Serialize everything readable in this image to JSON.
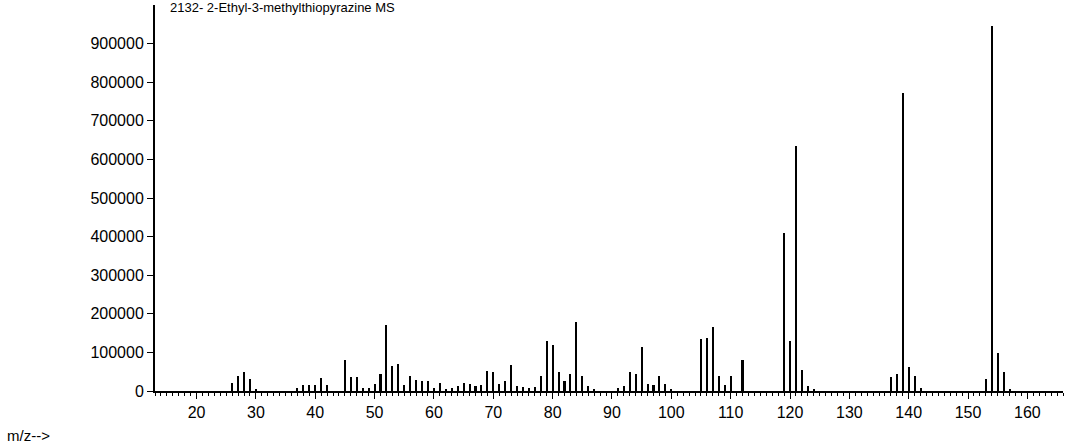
{
  "chart_data": {
    "type": "bar",
    "title": "2132- 2-Ethyl-3-methylthiopyrazine MS",
    "x_label": "m/z-->",
    "x": [
      26,
      27,
      28,
      29,
      30,
      37,
      38,
      39,
      40,
      41,
      42,
      45,
      46,
      47,
      48,
      49,
      50,
      51,
      52,
      53,
      54,
      55,
      56,
      57,
      58,
      59,
      60,
      61,
      62,
      63,
      64,
      65,
      66,
      67,
      68,
      69,
      70,
      71,
      72,
      73,
      74,
      75,
      76,
      77,
      78,
      79,
      80,
      81,
      82,
      83,
      84,
      85,
      86,
      87,
      91,
      92,
      93,
      94,
      95,
      96,
      97,
      98,
      99,
      100,
      105,
      106,
      107,
      108,
      109,
      110,
      112,
      119,
      120,
      121,
      122,
      123,
      124,
      137,
      138,
      139,
      140,
      141,
      142,
      153,
      154,
      155,
      156,
      157
    ],
    "values": [
      20000,
      40000,
      48000,
      30000,
      5000,
      8000,
      15000,
      15000,
      15000,
      33000,
      15000,
      80000,
      35000,
      35000,
      8000,
      8000,
      18000,
      45000,
      172000,
      65000,
      70000,
      15000,
      38000,
      28000,
      25000,
      25000,
      8000,
      20000,
      5000,
      8000,
      12000,
      20000,
      18000,
      12000,
      15000,
      52000,
      50000,
      18000,
      25000,
      68000,
      12000,
      10000,
      8000,
      10000,
      40000,
      130000,
      120000,
      48000,
      25000,
      45000,
      178000,
      38000,
      12000,
      5000,
      8000,
      12000,
      48000,
      45000,
      115000,
      18000,
      15000,
      40000,
      18000,
      5000,
      135000,
      138000,
      165000,
      38000,
      15000,
      38000,
      80000,
      410000,
      130000,
      635000,
      55000,
      12000,
      5000,
      35000,
      45000,
      772000,
      62000,
      38000,
      8000,
      30000,
      945000,
      98000,
      48000,
      5000
    ],
    "color": "#000000",
    "xlim": [
      13,
      166
    ],
    "ylim": [
      0,
      1000000
    ],
    "xticks": [
      20,
      30,
      40,
      50,
      60,
      70,
      80,
      90,
      100,
      110,
      120,
      130,
      140,
      150,
      160
    ],
    "yticks": [
      0,
      100000,
      200000,
      300000,
      400000,
      500000,
      600000,
      700000,
      800000,
      900000
    ],
    "grid": false
  }
}
